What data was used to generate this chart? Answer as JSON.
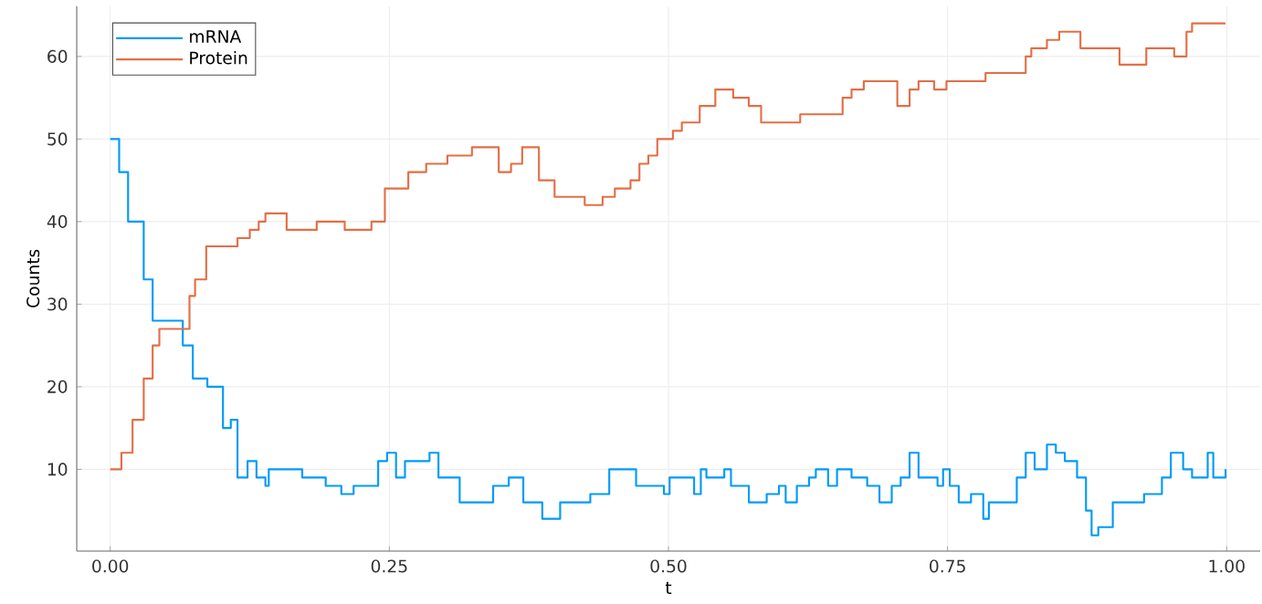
{
  "chart_data": {
    "type": "step",
    "xlabel": "t",
    "ylabel": "Counts",
    "xlim": [
      -0.03,
      1.03
    ],
    "ylim": [
      0.1,
      66.1
    ],
    "xticks": [
      {
        "value": 0,
        "label": "0.00"
      },
      {
        "value": 0.25,
        "label": "0.25"
      },
      {
        "value": 0.5,
        "label": "0.50"
      },
      {
        "value": 0.75,
        "label": "0.75"
      },
      {
        "value": 1,
        "label": "1.00"
      }
    ],
    "yticks": [
      10,
      20,
      30,
      40,
      50,
      60
    ],
    "grid": true,
    "legend": "top left",
    "series": [
      {
        "name": "mRNA",
        "color": "#009af9",
        "x": [
          0,
          0.008,
          0.016,
          0.03,
          0.038,
          0.054,
          0.065,
          0.074,
          0.087,
          0.101,
          0.108,
          0.114,
          0.123,
          0.131,
          0.139,
          0.142,
          0.172,
          0.193,
          0.207,
          0.218,
          0.24,
          0.248,
          0.256,
          0.264,
          0.286,
          0.294,
          0.313,
          0.343,
          0.357,
          0.37,
          0.387,
          0.403,
          0.43,
          0.447,
          0.471,
          0.496,
          0.501,
          0.523,
          0.529,
          0.534,
          0.55,
          0.556,
          0.572,
          0.588,
          0.599,
          0.605,
          0.615,
          0.626,
          0.632,
          0.643,
          0.651,
          0.664,
          0.678,
          0.689,
          0.7,
          0.708,
          0.716,
          0.724,
          0.741,
          0.746,
          0.752,
          0.76,
          0.771,
          0.782,
          0.787,
          0.812,
          0.82,
          0.828,
          0.839,
          0.847,
          0.855,
          0.866,
          0.874,
          0.879,
          0.885,
          0.898,
          0.926,
          0.942,
          0.95,
          0.961,
          0.969,
          0.983,
          0.988,
          0.999
        ],
        "values": [
          50,
          46,
          40,
          33,
          28,
          28,
          25,
          21,
          20,
          15,
          16,
          9,
          11,
          9,
          8,
          10,
          9,
          8,
          7,
          8,
          11,
          12,
          9,
          11,
          12,
          9,
          6,
          8,
          9,
          6,
          4,
          6,
          7,
          10,
          8,
          7,
          9,
          7,
          10,
          9,
          10,
          8,
          6,
          7,
          8,
          6,
          8,
          9,
          10,
          8,
          10,
          9,
          8,
          6,
          8,
          9,
          12,
          9,
          8,
          10,
          8,
          6,
          7,
          4,
          6,
          9,
          12,
          10,
          13,
          12,
          11,
          9,
          5,
          2,
          3,
          6,
          7,
          9,
          12,
          10,
          9,
          12,
          9,
          10
        ]
      },
      {
        "name": "Protein",
        "color": "#e26f46",
        "x": [
          0,
          0.01,
          0.02,
          0.03,
          0.038,
          0.044,
          0.071,
          0.076,
          0.086,
          0.114,
          0.125,
          0.133,
          0.139,
          0.158,
          0.185,
          0.21,
          0.234,
          0.246,
          0.267,
          0.283,
          0.302,
          0.324,
          0.348,
          0.359,
          0.369,
          0.384,
          0.398,
          0.425,
          0.441,
          0.452,
          0.466,
          0.474,
          0.482,
          0.49,
          0.504,
          0.512,
          0.528,
          0.542,
          0.558,
          0.572,
          0.583,
          0.618,
          0.656,
          0.664,
          0.675,
          0.705,
          0.716,
          0.724,
          0.738,
          0.749,
          0.784,
          0.82,
          0.825,
          0.839,
          0.85,
          0.869,
          0.904,
          0.928,
          0.953,
          0.964,
          0.969,
          0.999
        ],
        "values": [
          10,
          12,
          16,
          21,
          25,
          27,
          31,
          33,
          37,
          38,
          39,
          40,
          41,
          39,
          40,
          39,
          40,
          44,
          46,
          47,
          48,
          49,
          46,
          47,
          49,
          45,
          43,
          42,
          43,
          44,
          45,
          47,
          48,
          50,
          51,
          52,
          54,
          56,
          55,
          54,
          52,
          53,
          55,
          56,
          57,
          54,
          56,
          57,
          56,
          57,
          58,
          60,
          61,
          62,
          63,
          61,
          59,
          61,
          60,
          63,
          64,
          64
        ]
      }
    ]
  }
}
